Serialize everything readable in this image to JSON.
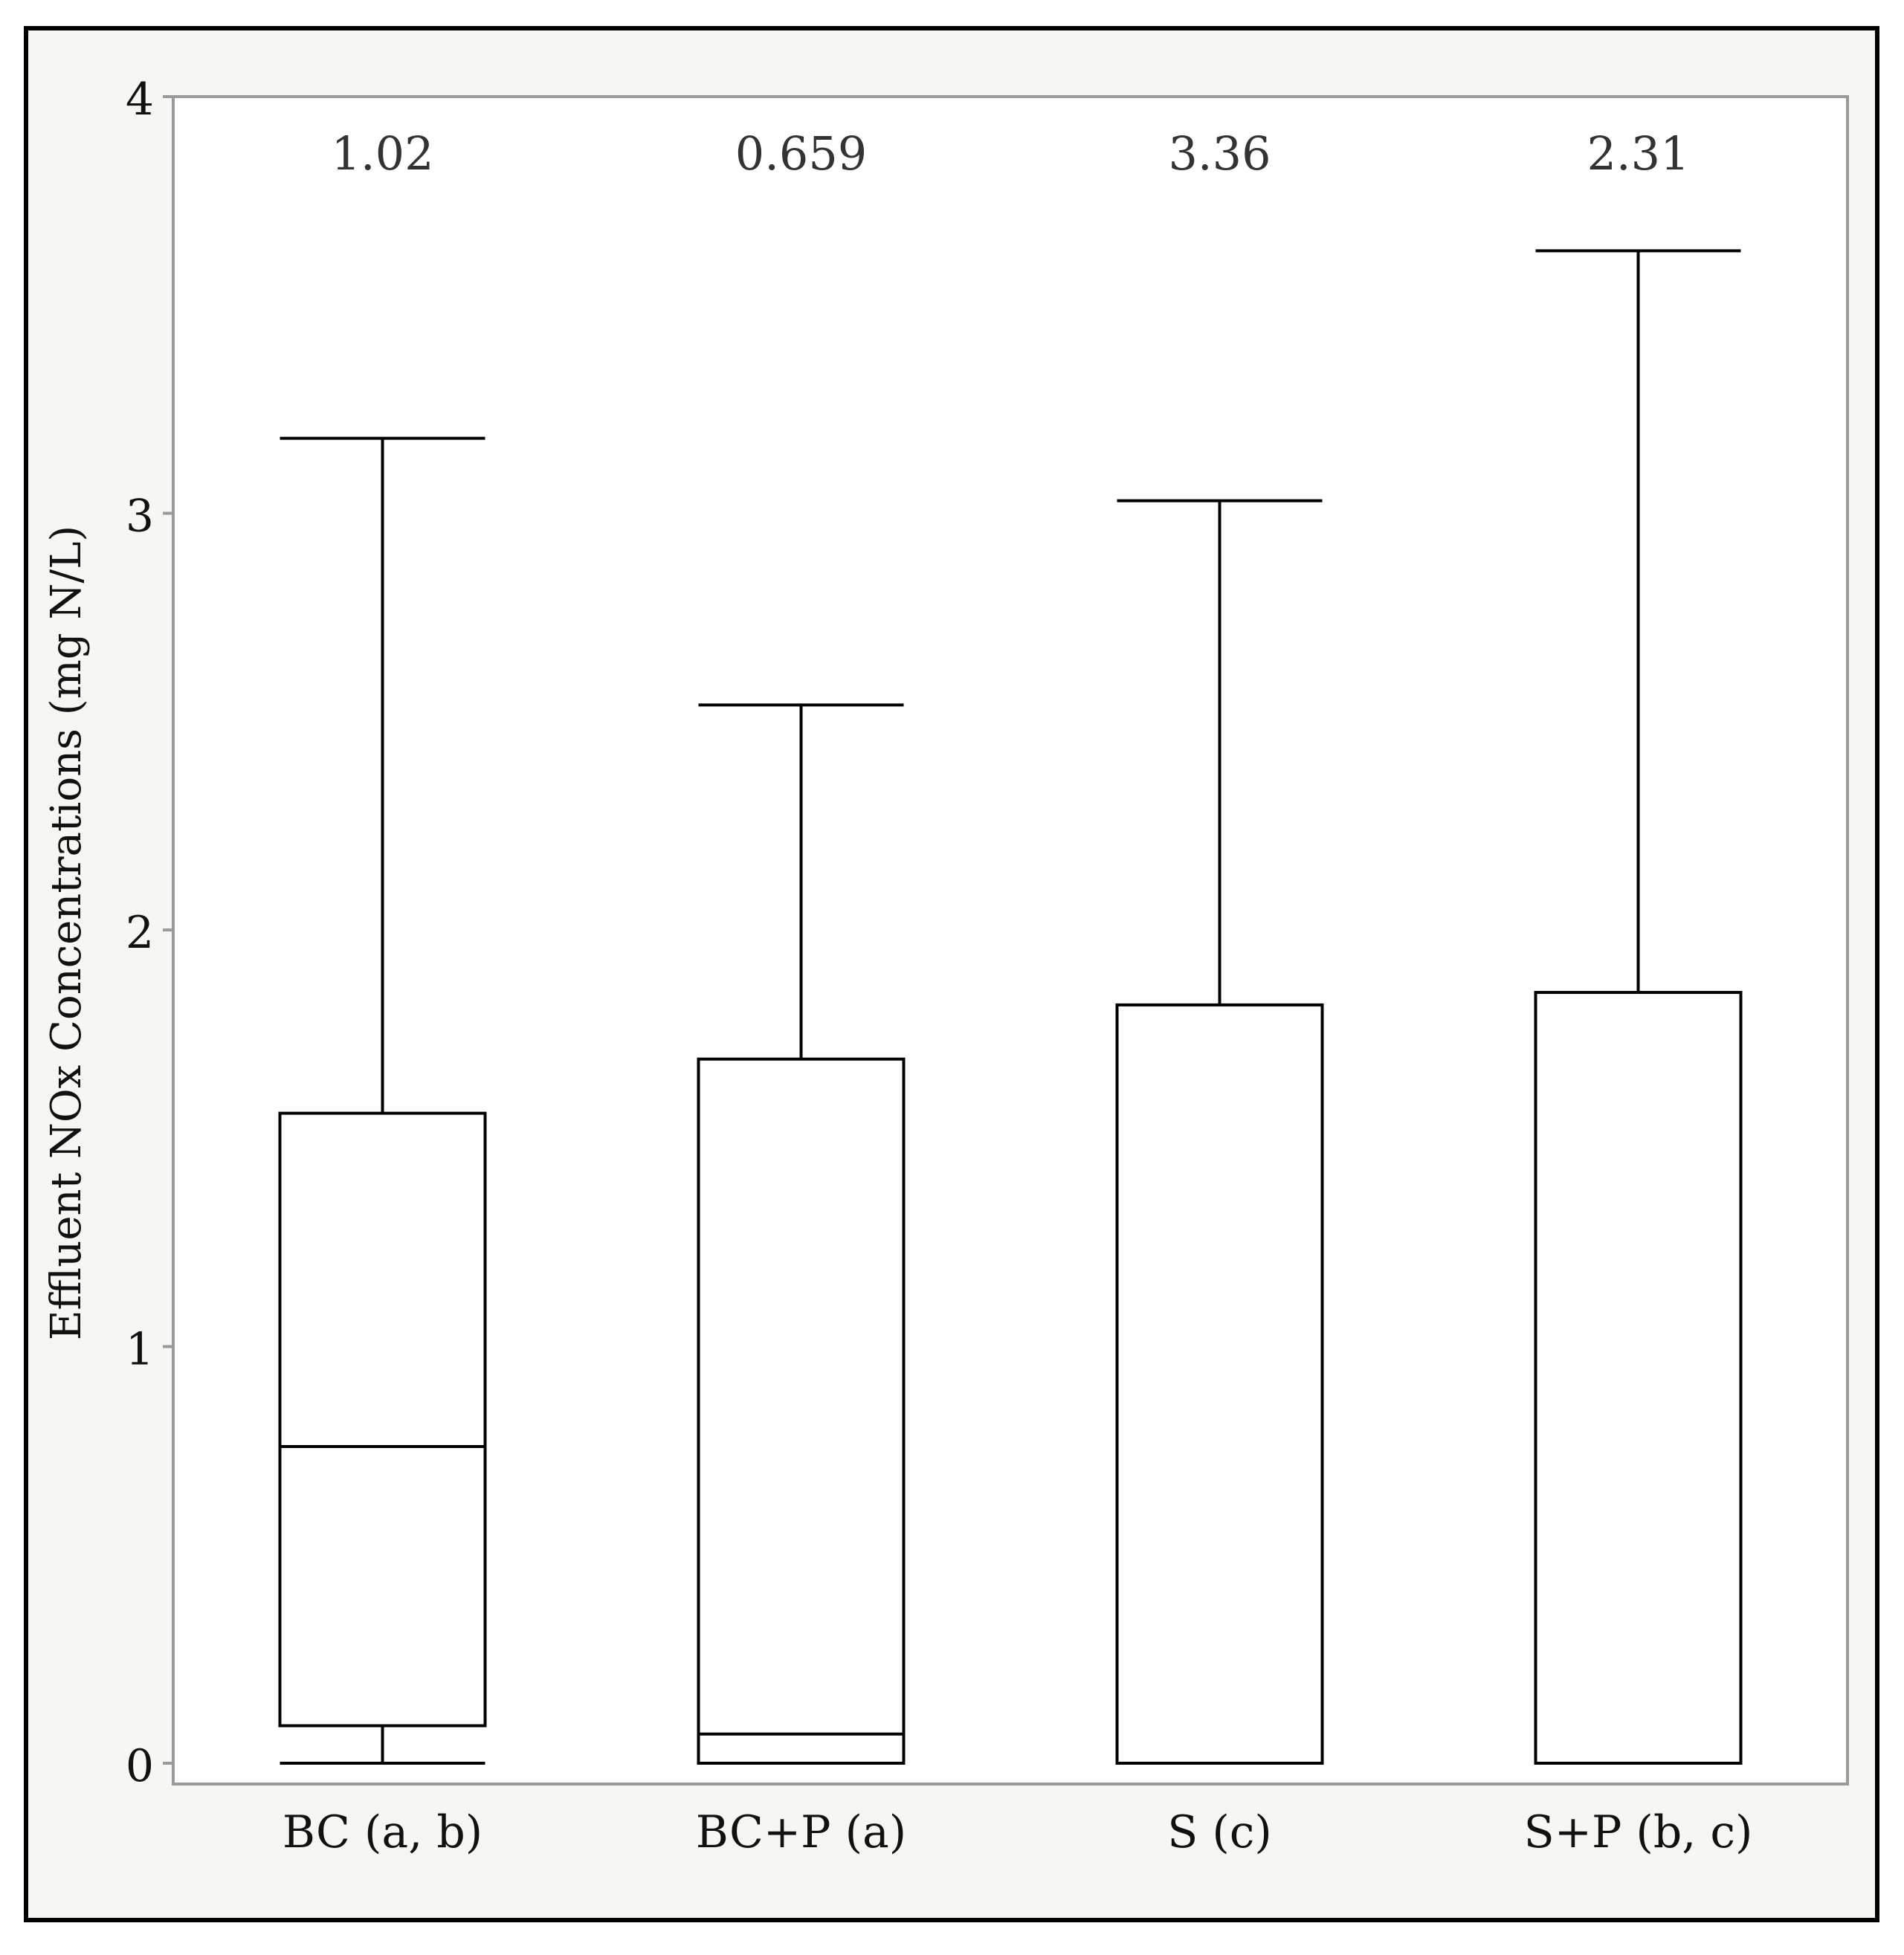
{
  "chart_data": {
    "type": "boxplot",
    "title": "",
    "xlabel": "",
    "ylabel": "Effluent NOx Concentrations (mg N/L)",
    "ylim": [
      -0.05,
      4.0
    ],
    "yticks": [
      0,
      1,
      2,
      3,
      4
    ],
    "grid": false,
    "legend": "none",
    "categories": [
      "BC (a, b)",
      "BC+P (a)",
      "S (c)",
      "S+P (b, c)"
    ],
    "boxes": [
      {
        "category": "BC (a, b)",
        "min": 0.0,
        "q1": 0.09,
        "median": 0.76,
        "q3": 1.56,
        "max": 3.18,
        "annotation": "1.02"
      },
      {
        "category": "BC+P (a)",
        "min": 0.0,
        "q1": 0.0,
        "median": 0.07,
        "q3": 1.69,
        "max": 2.54,
        "annotation": "0.659"
      },
      {
        "category": "S (c)",
        "min": 0.0,
        "q1": 0.0,
        "median": 0.0,
        "q3": 1.82,
        "max": 3.03,
        "annotation": "3.36"
      },
      {
        "category": "S+P (b, c)",
        "min": 0.0,
        "q1": 0.0,
        "median": 0.0,
        "q3": 1.85,
        "max": 3.63,
        "annotation": "2.31"
      }
    ],
    "colors": {
      "figure_background": "#f6f7f2",
      "figure_border": "#000000",
      "plot_background": "#ffffff",
      "plot_frame": "#9a9a9a",
      "box_stroke": "#000000",
      "axis_text": "#111111",
      "annotation_text": "#333333"
    }
  }
}
